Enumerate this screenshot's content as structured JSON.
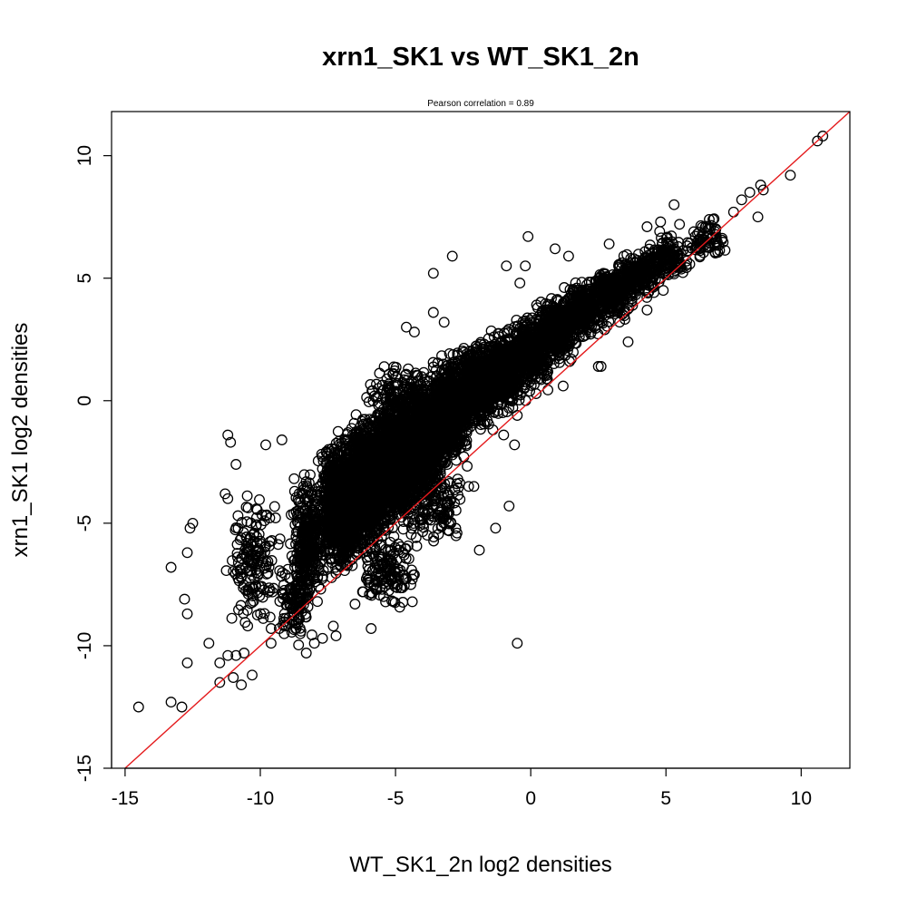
{
  "chart_data": {
    "type": "scatter",
    "title": "xrn1_SK1 vs WT_SK1_2n",
    "subtitle": "Pearson correlation =  0.89",
    "xlabel": "WT_SK1_2n log2 densities",
    "ylabel": "xrn1_SK1 log2 densities",
    "xlim": [
      -15.5,
      11.8
    ],
    "ylim": [
      -15,
      11.8
    ],
    "x_ticks": [
      -15,
      -10,
      -5,
      0,
      5,
      10
    ],
    "x_tick_labels": [
      "-15",
      "-10",
      "-5",
      "0",
      "5",
      "10"
    ],
    "y_ticks": [
      -15,
      -10,
      -5,
      0,
      5,
      10
    ],
    "y_tick_labels": [
      "-15",
      "-10",
      "-5",
      "0",
      "5",
      "10"
    ],
    "grid": false,
    "legend": "none",
    "marker": "open-circle",
    "point_color": "#000000",
    "reference_line": {
      "slope": 1,
      "intercept": 0,
      "color": "#e41a1c"
    },
    "outlier_points": [
      [
        -14.5,
        -12.5
      ],
      [
        -13.3,
        -12.3
      ],
      [
        -12.9,
        -12.5
      ],
      [
        -13.3,
        -6.8
      ],
      [
        -12.8,
        -8.1
      ],
      [
        -12.7,
        -6.2
      ],
      [
        -12.6,
        -5.2
      ],
      [
        -12.5,
        -5.0
      ],
      [
        -12.7,
        -8.7
      ],
      [
        -12.7,
        -10.7
      ],
      [
        -11.2,
        -1.4
      ],
      [
        -11.1,
        -1.7
      ],
      [
        -10.9,
        -2.6
      ],
      [
        -11.3,
        -3.8
      ],
      [
        -11.2,
        -4.0
      ],
      [
        -10.7,
        -5.6
      ],
      [
        -11.9,
        -9.9
      ],
      [
        -11.5,
        -10.7
      ],
      [
        -11.5,
        -11.5
      ],
      [
        -11.0,
        -11.3
      ],
      [
        -10.7,
        -11.6
      ],
      [
        -10.3,
        -11.2
      ],
      [
        -11.2,
        -10.4
      ],
      [
        -10.9,
        -10.4
      ],
      [
        -10.6,
        -10.3
      ],
      [
        -9.8,
        -1.8
      ],
      [
        -9.2,
        -1.6
      ],
      [
        -4.8,
        -0.9
      ],
      [
        -4.6,
        3.0
      ],
      [
        -4.3,
        2.8
      ],
      [
        -3.6,
        3.6
      ],
      [
        -3.6,
        5.2
      ],
      [
        -2.9,
        5.9
      ],
      [
        -3.2,
        3.2
      ],
      [
        -0.1,
        6.7
      ],
      [
        -0.2,
        5.5
      ],
      [
        -0.9,
        5.5
      ],
      [
        -0.4,
        4.8
      ],
      [
        0.9,
        6.2
      ],
      [
        1.4,
        5.9
      ],
      [
        2.9,
        6.4
      ],
      [
        4.3,
        7.1
      ],
      [
        4.8,
        7.3
      ],
      [
        5.3,
        8.0
      ],
      [
        5.5,
        7.2
      ],
      [
        6.6,
        7.4
      ],
      [
        7.5,
        7.7
      ],
      [
        8.1,
        8.5
      ],
      [
        8.5,
        8.8
      ],
      [
        8.6,
        8.6
      ],
      [
        9.6,
        9.2
      ],
      [
        10.6,
        10.6
      ],
      [
        10.8,
        10.8
      ],
      [
        8.4,
        7.5
      ],
      [
        7.8,
        8.2
      ],
      [
        -0.6,
        -1.8
      ],
      [
        -1.0,
        -1.4
      ],
      [
        -0.5,
        -0.6
      ],
      [
        -0.8,
        -4.3
      ],
      [
        -1.3,
        -5.2
      ],
      [
        -1.9,
        -6.1
      ],
      [
        -3.1,
        -4.6
      ],
      [
        -0.5,
        -9.9
      ],
      [
        -4.3,
        -7.1
      ],
      [
        -5.9,
        -9.3
      ],
      [
        -6.5,
        -8.3
      ],
      [
        -6.2,
        -7.8
      ],
      [
        -7.2,
        -9.6
      ],
      [
        -7.3,
        -9.2
      ],
      [
        -7.7,
        -9.7
      ],
      [
        -8.0,
        -9.9
      ],
      [
        -8.3,
        -10.3
      ],
      [
        -9.1,
        -9.2
      ],
      [
        -9.6,
        -9.9
      ],
      [
        -9.6,
        -9.3
      ],
      [
        2.5,
        1.4
      ],
      [
        2.6,
        1.4
      ],
      [
        1.2,
        0.6
      ],
      [
        3.6,
        2.4
      ],
      [
        4.3,
        3.7
      ],
      [
        4.9,
        4.5
      ],
      [
        1.5,
        1.7
      ],
      [
        -2.7,
        -3.2
      ],
      [
        -2.1,
        -3.5
      ],
      [
        -5.5,
        -7.7
      ],
      [
        -5.0,
        -7.0
      ]
    ],
    "point_clusters": [
      {
        "x": [
          -9.0,
          -7.5
        ],
        "y": [
          -9.0,
          -2.5
        ],
        "n": 320
      },
      {
        "x": [
          -8.0,
          -6.0
        ],
        "y": [
          -7.5,
          -1.0
        ],
        "n": 1200
      },
      {
        "x": [
          -7.0,
          -5.0
        ],
        "y": [
          -6.5,
          0.0
        ],
        "n": 1300
      },
      {
        "x": [
          -6.0,
          -4.0
        ],
        "y": [
          -5.5,
          0.8
        ],
        "n": 1200
      },
      {
        "x": [
          -5.0,
          -3.0
        ],
        "y": [
          -4.5,
          1.5
        ],
        "n": 1000
      },
      {
        "x": [
          -4.0,
          -2.0
        ],
        "y": [
          -3.0,
          2.2
        ],
        "n": 800
      },
      {
        "x": [
          -3.0,
          -1.0
        ],
        "y": [
          -1.5,
          2.8
        ],
        "n": 600
      },
      {
        "x": [
          -2.0,
          0.0
        ],
        "y": [
          -0.8,
          3.2
        ],
        "n": 500
      },
      {
        "x": [
          -1.0,
          1.0
        ],
        "y": [
          0.2,
          3.8
        ],
        "n": 450
      },
      {
        "x": [
          0.0,
          2.0
        ],
        "y": [
          1.3,
          4.6
        ],
        "n": 400
      },
      {
        "x": [
          1.0,
          3.0
        ],
        "y": [
          2.3,
          5.2
        ],
        "n": 340
      },
      {
        "x": [
          2.0,
          4.0
        ],
        "y": [
          3.1,
          5.7
        ],
        "n": 280
      },
      {
        "x": [
          3.0,
          5.0
        ],
        "y": [
          4.0,
          6.4
        ],
        "n": 200
      },
      {
        "x": [
          4.0,
          6.0
        ],
        "y": [
          4.7,
          7.0
        ],
        "n": 140
      },
      {
        "x": [
          5.5,
          7.5
        ],
        "y": [
          5.5,
          7.8
        ],
        "n": 70
      },
      {
        "x": [
          -11.5,
          -9.0
        ],
        "y": [
          -10.0,
          -3.0
        ],
        "n": 160
      },
      {
        "x": [
          -9.5,
          -8.0
        ],
        "y": [
          -10.5,
          -6.0
        ],
        "n": 110
      },
      {
        "x": [
          -6.5,
          -4.0
        ],
        "y": [
          -9.0,
          -5.0
        ],
        "n": 140
      },
      {
        "x": [
          -5.0,
          -2.0
        ],
        "y": [
          -6.5,
          -2.0
        ],
        "n": 140
      },
      {
        "x": [
          -6.5,
          -3.5
        ],
        "y": [
          -1.5,
          2.0
        ],
        "n": 90
      }
    ]
  }
}
